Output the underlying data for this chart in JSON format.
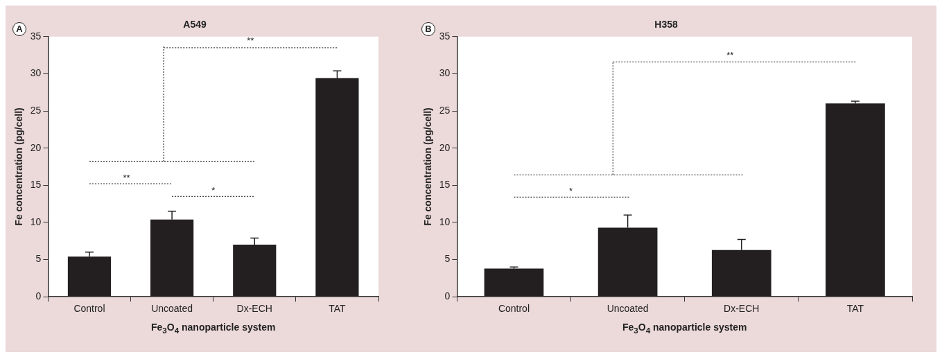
{
  "chart_data": [
    {
      "type": "bar",
      "title": "A549",
      "xlabel": "Fe$_{3}$O$_{4}$ nanoparticle system",
      "ylabel": "Fe concentration (pg/cell)",
      "categories": [
        "Control",
        "Uncoated",
        "Dx-ECH",
        "TAT"
      ],
      "values": [
        5.4,
        10.4,
        7.0,
        29.4
      ],
      "errors": [
        0.6,
        1.1,
        0.9,
        1.0
      ],
      "color": "#231f20",
      "ylim": [
        0,
        35
      ],
      "yticks": [
        0,
        5,
        10,
        15,
        20,
        25,
        30,
        35
      ],
      "grid": false,
      "legend": false,
      "annotations": [
        "A",
        "**",
        "*",
        "**"
      ]
    },
    {
      "type": "bar",
      "title": "H358",
      "xlabel": "Fe$_{3}$O$_{4}$ nanoparticle system",
      "ylabel": "Fe concentration (pg/cell)",
      "categories": [
        "Control",
        "Uncoated",
        "Dx-ECH",
        "TAT"
      ],
      "values": [
        3.8,
        9.3,
        6.3,
        26.0
      ],
      "errors": [
        0.2,
        1.7,
        1.4,
        0.3
      ],
      "color": "#231f20",
      "ylim": [
        0,
        35
      ],
      "yticks": [
        0,
        5,
        10,
        15,
        20,
        25,
        30,
        35
      ],
      "grid": false,
      "legend": false,
      "annotations": [
        "B",
        "*",
        "**"
      ]
    }
  ]
}
